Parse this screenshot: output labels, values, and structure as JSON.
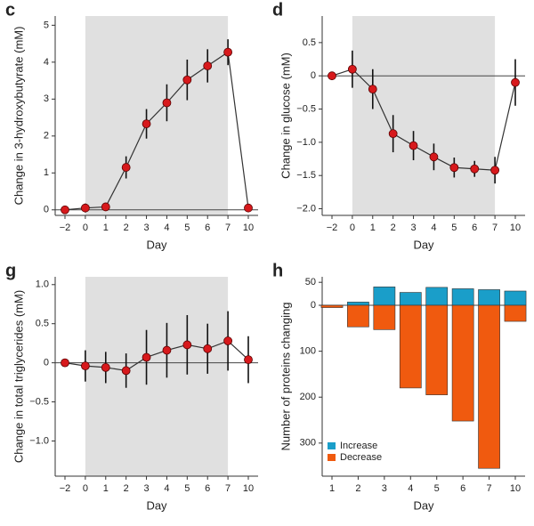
{
  "chart_data": [
    {
      "type": "line",
      "panel": "c",
      "ylabel": "Change in 3-hydroxybutyrate (mM)",
      "xlabel": "Day",
      "categories": [
        {
          "value": -2,
          "label": "−2"
        },
        "0",
        "1",
        "2",
        "3",
        "4",
        "5",
        "6",
        "7",
        "10"
      ],
      "values": [
        0,
        0.05,
        0.08,
        1.15,
        2.33,
        2.9,
        3.52,
        3.9,
        4.27,
        0.05
      ],
      "errors": [
        0.05,
        0.12,
        0.1,
        0.3,
        0.4,
        0.5,
        0.55,
        0.45,
        0.35,
        0.05
      ],
      "color": "#d7191c",
      "shade": [
        0,
        7
      ],
      "ylim": [
        -0.15,
        5.25
      ],
      "yticks": [
        0,
        1,
        2,
        3,
        4,
        5
      ]
    },
    {
      "type": "line",
      "panel": "d",
      "ylabel": "Change in glucose (mM)",
      "xlabel": "Day",
      "categories": [
        {
          "value": -2,
          "label": "−2"
        },
        "0",
        "1",
        "2",
        "3",
        "4",
        "5",
        "6",
        "7",
        "10"
      ],
      "values": [
        0,
        0.1,
        -0.2,
        -0.87,
        -1.05,
        -1.22,
        -1.38,
        -1.4,
        -1.42,
        -0.1
      ],
      "errors": [
        0,
        0.28,
        0.3,
        0.28,
        0.22,
        0.2,
        0.15,
        0.12,
        0.2,
        0.35
      ],
      "color": "#d7191c",
      "shade": [
        0,
        7
      ],
      "ylim": [
        -2.1,
        0.9
      ],
      "yticks": [
        {
          "value": 0.5,
          "label": "0.5"
        },
        0,
        {
          "value": -0.5,
          "label": "−0.5"
        },
        {
          "value": -1.0,
          "label": "−1.0"
        },
        {
          "value": -1.5,
          "label": "−1.5"
        },
        {
          "value": -2.0,
          "label": "−2.0"
        }
      ]
    },
    {
      "type": "line",
      "panel": "g",
      "ylabel": "Change in total triglycerides (mM)",
      "xlabel": "Day",
      "categories": [
        {
          "value": -2,
          "label": "−2"
        },
        "0",
        "1",
        "2",
        "3",
        "4",
        "5",
        "6",
        "7",
        "10"
      ],
      "values": [
        0,
        -0.04,
        -0.06,
        -0.1,
        0.07,
        0.16,
        0.23,
        0.18,
        0.28,
        0.04
      ],
      "errors": [
        0,
        0.2,
        0.2,
        0.22,
        0.35,
        0.35,
        0.38,
        0.32,
        0.38,
        0.3
      ],
      "color": "#d7191c",
      "shade": [
        0,
        7
      ],
      "ylim": [
        -1.45,
        1.1
      ],
      "yticks": [
        {
          "value": 1.0,
          "label": "1.0"
        },
        0.5,
        0,
        {
          "value": -0.5,
          "label": "−0.5"
        },
        {
          "value": -1.0,
          "label": "−1.0"
        }
      ]
    },
    {
      "type": "bar",
      "panel": "h",
      "ylabel": "Number of proteins changing",
      "xlabel": "Day",
      "categories": [
        "1",
        "2",
        "3",
        "4",
        "5",
        "6",
        "7",
        "10"
      ],
      "series": [
        {
          "name": "Increase",
          "color": "#1a9ec9",
          "values": [
            0,
            7,
            40,
            28,
            39,
            36,
            34,
            31
          ]
        },
        {
          "name": "Decrease",
          "color": "#f05a0f",
          "values": [
            -5,
            -47,
            -53,
            -180,
            -195,
            -252,
            -355,
            -35
          ]
        }
      ],
      "legend": "lower-left",
      "ylim": [
        -372,
        62
      ],
      "yticks": [
        50,
        0,
        {
          "value": -100,
          "label": "100"
        },
        {
          "value": -200,
          "label": "200"
        },
        {
          "value": -300,
          "label": "300"
        }
      ]
    }
  ]
}
